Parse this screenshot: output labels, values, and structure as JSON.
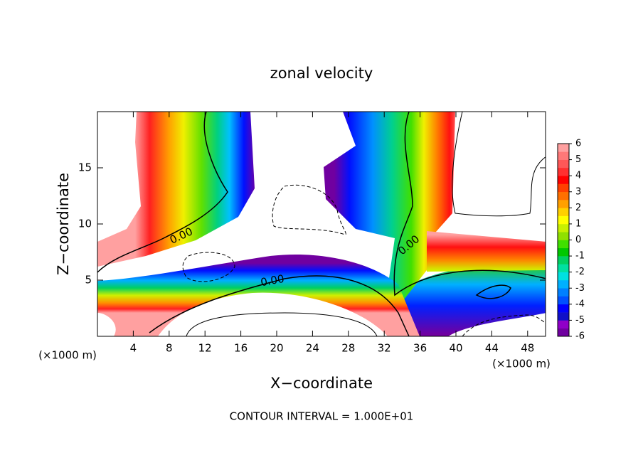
{
  "chart_data": {
    "type": "contour",
    "title": "zonal velocity",
    "x_label": "X−coordinate",
    "y_label": "Z−coordinate",
    "x_unit": "(×1000 m)",
    "y_unit": "(×1000 m)",
    "xlim": [
      0,
      50
    ],
    "xticks": [
      4,
      8,
      12,
      16,
      20,
      24,
      28,
      32,
      36,
      40,
      44,
      48
    ],
    "ylim": [
      0,
      20
    ],
    "yticks": [
      5,
      10,
      15
    ],
    "contour_labels": [
      "0.00",
      "0.00",
      "0.00"
    ],
    "footnote": "CONTOUR INTERVAL = 1.000E+01",
    "colorbar": {
      "ticks": [
        -6,
        -5,
        -4,
        -3,
        -2,
        -1,
        0,
        1,
        2,
        3,
        4,
        5,
        6
      ],
      "colors": [
        "#7000a0",
        "#9000c8",
        "#1010c8",
        "#0000ff",
        "#0050ff",
        "#0080ff",
        "#00b0ff",
        "#00e0e0",
        "#00e0a0",
        "#00d060",
        "#00c800",
        "#40e000",
        "#90e000",
        "#c8f000",
        "#ffff00",
        "#ffd000",
        "#ffa000",
        "#ff7000",
        "#ff4000",
        "#ff0000",
        "#ff3030",
        "#ff5858",
        "#ff7878",
        "#ffa0a0"
      ]
    }
  }
}
